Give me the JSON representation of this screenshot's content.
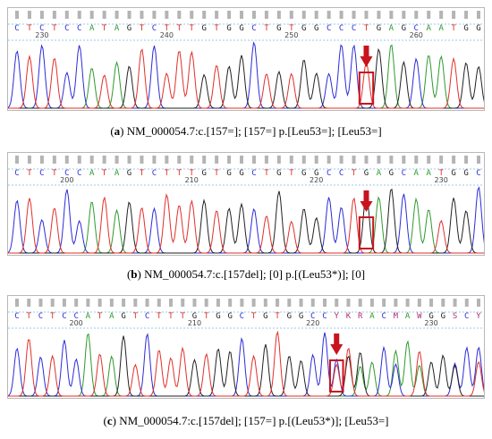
{
  "colors": {
    "A": "#2e9a2e",
    "C": "#2c2cd8",
    "G": "#222222",
    "T": "#e0302a",
    "Y": "#b2307a",
    "K": "#b2307a",
    "R": "#b2307a",
    "M": "#b2307a",
    "W": "#b2307a",
    "S": "#b2307a",
    "highlight": "#c8141e",
    "arrow": "#c8141e"
  },
  "panels": [
    {
      "label": "a",
      "sequence": "CTCTCCATAGTCTTTGTGGCTGTGGCCCTGAGCAATGG",
      "ruler": [
        {
          "index": 2,
          "label": "230"
        },
        {
          "index": 12,
          "label": "240"
        },
        {
          "index": 22,
          "label": "250"
        },
        {
          "index": 32,
          "label": "260"
        }
      ],
      "highlight_index": 28,
      "caption_rest": " NM_000054.7:c.[157=]; [157=] p.[Leu53=]; [Leu53=]"
    },
    {
      "label": "b",
      "sequence": "CTCTCCATAGTCTTTGTGGCTGTGGCCTGAGCAATGGC",
      "ruler": [
        {
          "index": 4,
          "label": "200"
        },
        {
          "index": 14,
          "label": "210"
        },
        {
          "index": 24,
          "label": "220"
        },
        {
          "index": 34,
          "label": "230"
        }
      ],
      "highlight_index": 28,
      "caption_rest": " NM_000054.7:c.[157del]; [0] p.[(Leu53*)]; [0]"
    },
    {
      "label": "c",
      "sequence": "CTCTCCATAGTCTTTGTGGCTGTGGCCYKRACMAWGGSCY",
      "ruler": [
        {
          "index": 5,
          "label": "200"
        },
        {
          "index": 15,
          "label": "210"
        },
        {
          "index": 25,
          "label": "220"
        },
        {
          "index": 35,
          "label": "230"
        }
      ],
      "highlight_index": 27,
      "caption_rest": " NM_000054.7:c.[157del]; [157=] p.[(Leu53*)]; [Leu53=]"
    }
  ]
}
